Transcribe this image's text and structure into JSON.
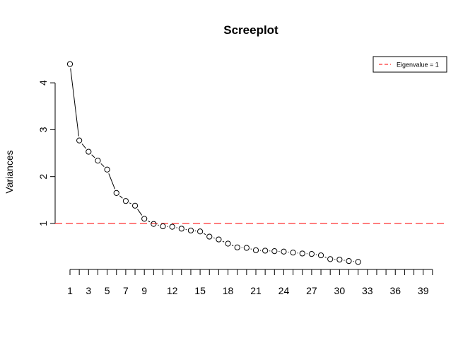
{
  "chart_data": {
    "type": "line",
    "title": "Screeplot",
    "xlabel": "",
    "ylabel": "Variances",
    "x": [
      1,
      2,
      3,
      4,
      5,
      6,
      7,
      8,
      9,
      10,
      11,
      12,
      13,
      14,
      15,
      16,
      17,
      18,
      19,
      20,
      21,
      22,
      23,
      24,
      25,
      26,
      27,
      28,
      29,
      30,
      31,
      32
    ],
    "series": [
      {
        "values": [
          4.4,
          2.77,
          2.53,
          2.34,
          2.15,
          1.65,
          1.48,
          1.38,
          1.1,
          0.99,
          0.94,
          0.93,
          0.89,
          0.85,
          0.83,
          0.72,
          0.66,
          0.57,
          0.49,
          0.48,
          0.43,
          0.42,
          0.41,
          0.4,
          0.38,
          0.36,
          0.35,
          0.32,
          0.24,
          0.23,
          0.2,
          0.18
        ],
        "color": "#000000"
      }
    ],
    "reference_line": {
      "y": 1,
      "label": "Eigenvalue = 1",
      "color": "#ff3030",
      "style": "dashed"
    },
    "xlim": [
      1,
      40
    ],
    "x_ticks": [
      1,
      2,
      3,
      4,
      5,
      6,
      7,
      8,
      9,
      10,
      11,
      12,
      13,
      14,
      15,
      16,
      17,
      18,
      19,
      20,
      21,
      22,
      23,
      24,
      25,
      26,
      27,
      28,
      29,
      30,
      31,
      32,
      33,
      34,
      35,
      36,
      37,
      38,
      39,
      40
    ],
    "x_tick_labels": [
      "1",
      "3",
      "5",
      "7",
      "9",
      "12",
      "15",
      "18",
      "21",
      "24",
      "27",
      "30",
      "33",
      "36",
      "39"
    ],
    "ylim": [
      0,
      4.4
    ],
    "y_ticks": [
      1,
      2,
      3,
      4
    ],
    "y_tick_labels": [
      "1",
      "2",
      "3",
      "4"
    ],
    "grid": false,
    "legend_position": "top-right"
  }
}
